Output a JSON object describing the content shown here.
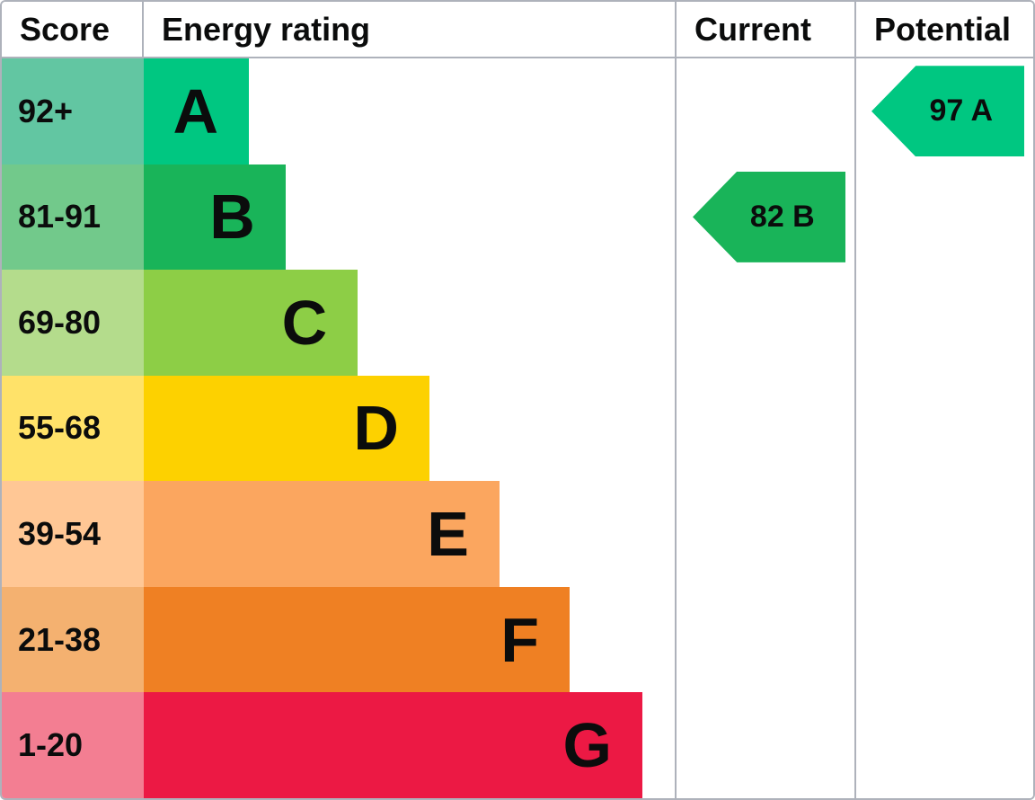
{
  "header": {
    "score": "Score",
    "energy_rating": "Energy rating",
    "current": "Current",
    "potential": "Potential"
  },
  "chart_data": {
    "type": "bar",
    "orientation": "horizontal",
    "title": "Energy rating chart (EPC)",
    "columns": [
      "Score",
      "Energy rating",
      "Current",
      "Potential"
    ],
    "bands": [
      {
        "grade": "A",
        "range": "92+",
        "band_color": "#00c781",
        "score_color": "#62c6a2",
        "bar_width_pct": 19.8
      },
      {
        "grade": "B",
        "range": "81-91",
        "band_color": "#19b459",
        "score_color": "#72c98b",
        "bar_width_pct": 26.7
      },
      {
        "grade": "C",
        "range": "69-80",
        "band_color": "#8dce46",
        "score_color": "#b4dc8c",
        "bar_width_pct": 40.3
      },
      {
        "grade": "D",
        "range": "55-68",
        "band_color": "#fdd100",
        "score_color": "#ffe269",
        "bar_width_pct": 53.8
      },
      {
        "grade": "E",
        "range": "39-54",
        "band_color": "#fba65f",
        "score_color": "#ffc795",
        "bar_width_pct": 67.0
      },
      {
        "grade": "F",
        "range": "21-38",
        "band_color": "#ef8023",
        "score_color": "#f4b170",
        "bar_width_pct": 80.2
      },
      {
        "grade": "G",
        "range": "1-20",
        "band_color": "#ec1944",
        "score_color": "#f37e92",
        "bar_width_pct": 93.9
      }
    ],
    "current": {
      "value": 82,
      "grade": "B",
      "label": "82 B",
      "color": "#19b459",
      "band_row": "B",
      "column": "Current"
    },
    "potential": {
      "value": 97,
      "grade": "A",
      "label": "97 A",
      "color": "#00c781",
      "band_row": "A",
      "column": "Potential"
    },
    "border_color": "#aeb2bb",
    "legend_position": "none",
    "grid": "column-separators-only"
  }
}
